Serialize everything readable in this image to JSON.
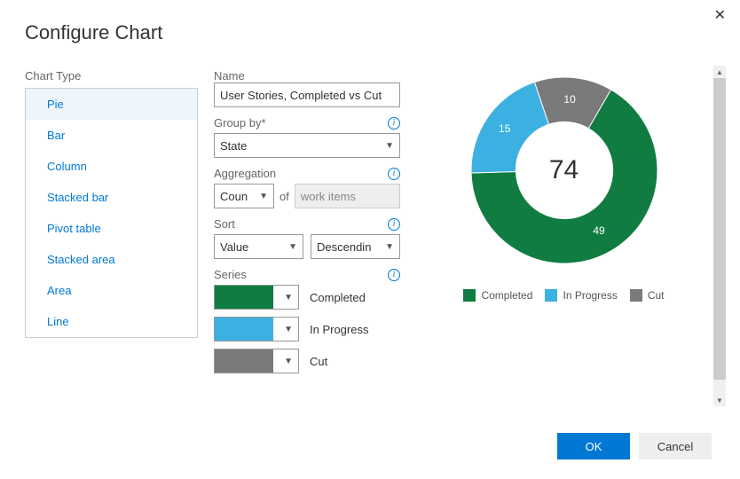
{
  "dialog": {
    "title": "Configure Chart",
    "close_glyph": "✕",
    "ok_label": "OK",
    "cancel_label": "Cancel"
  },
  "chart_type": {
    "label": "Chart Type",
    "items": [
      "Pie",
      "Bar",
      "Column",
      "Stacked bar",
      "Pivot table",
      "Stacked area",
      "Area",
      "Line"
    ],
    "selected_index": 0
  },
  "form": {
    "name_label": "Name",
    "name_value": "User Stories, Completed vs Cut",
    "group_by_label": "Group by*",
    "group_by_value": "State",
    "aggregation_label": "Aggregation",
    "aggregation_value": "Coun",
    "aggregation_of": "of",
    "aggregation_unit": "work items",
    "sort_label": "Sort",
    "sort_field": "Value",
    "sort_dir": "Descendin",
    "series_label": "Series"
  },
  "series": [
    {
      "label": "Completed",
      "color": "#107c41"
    },
    {
      "label": "In Progress",
      "color": "#3cb1e1"
    },
    {
      "label": "Cut",
      "color": "#7a7a7a"
    }
  ],
  "chart": {
    "type": "donut",
    "total": 74,
    "inner_radius_pct": 52,
    "background_color": "#ffffff",
    "slices": [
      {
        "label": "Completed",
        "value": 49,
        "color": "#107c41"
      },
      {
        "label": "In Progress",
        "value": 15,
        "color": "#3cb1e1"
      },
      {
        "label": "Cut",
        "value": 10,
        "color": "#7a7a7a"
      }
    ],
    "start_angle_deg": 300,
    "label_color": "#ffffff",
    "label_fontsize": 12,
    "center_fontsize": 30,
    "center_color": "#333333"
  },
  "colors": {
    "link": "#0078d4",
    "selected_bg": "#eef5fb",
    "border": "#999999",
    "muted_text": "#666666"
  }
}
